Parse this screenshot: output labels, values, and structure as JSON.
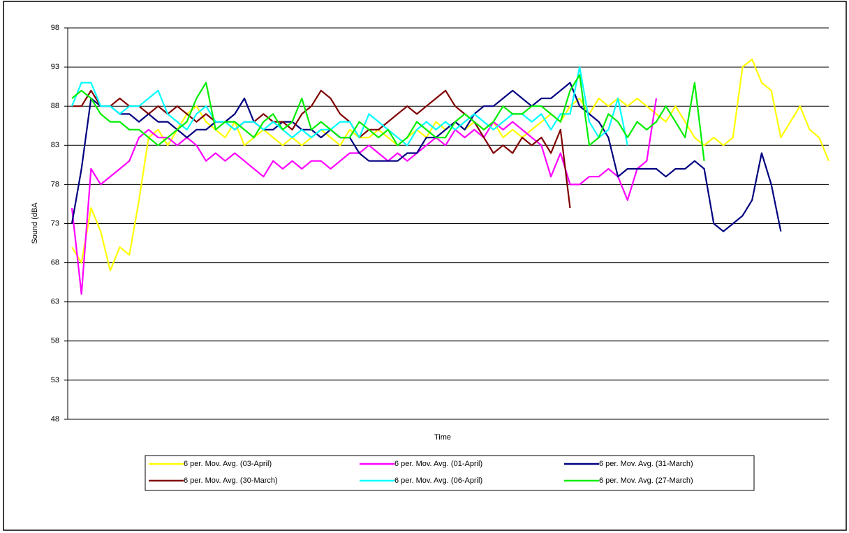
{
  "chart_data": {
    "type": "line",
    "y_label": "Sound (dBA",
    "x_label": "Time",
    "ylim": [
      48,
      98
    ],
    "yticks": [
      48,
      53,
      58,
      63,
      68,
      73,
      78,
      83,
      88,
      93,
      98
    ],
    "grid": true,
    "legend": "bottom",
    "categories": [
      null,
      null,
      null,
      null,
      null,
      null,
      null,
      null,
      null,
      null,
      null,
      null,
      null,
      null,
      null,
      null,
      null,
      null,
      null,
      null,
      null,
      null,
      null,
      null,
      null,
      null,
      null,
      null,
      null,
      null,
      null,
      null,
      null,
      null,
      null,
      null,
      null,
      null,
      null,
      null,
      null,
      null,
      null,
      null,
      null,
      null,
      null,
      null,
      null,
      null,
      null,
      null,
      null,
      null,
      null,
      null,
      null,
      null,
      null,
      null,
      null,
      null,
      null,
      null,
      null,
      null,
      null,
      null,
      null,
      null,
      null,
      null,
      null,
      null,
      null,
      null,
      null,
      null,
      null,
      null
    ],
    "series": [
      {
        "name": "6 per. Mov. Avg. (03-April)",
        "color": "#ffff00",
        "values": [
          70,
          68,
          75,
          72,
          67,
          70,
          69,
          76,
          84,
          85,
          83,
          85,
          87,
          88,
          86,
          85,
          84,
          86,
          83,
          84,
          85,
          84,
          83,
          84,
          83,
          84,
          85,
          84,
          83,
          85,
          84,
          84,
          85,
          84,
          83,
          84,
          85,
          84,
          86,
          85,
          86,
          85,
          86,
          85,
          86,
          84,
          85,
          84,
          85,
          86,
          87,
          86,
          88,
          89,
          87,
          89,
          88,
          89,
          88,
          89,
          88,
          87,
          86,
          88,
          86,
          84,
          83,
          84,
          83,
          84,
          93,
          94,
          91,
          90,
          84,
          86,
          88,
          85,
          84,
          81
        ]
      },
      {
        "name": "6 per. Mov. Avg. (01-April)",
        "color": "#ff00ff",
        "values": [
          75,
          64,
          80,
          78,
          79,
          80,
          81,
          84,
          85,
          84,
          84,
          83,
          84,
          83,
          81,
          82,
          81,
          82,
          81,
          80,
          79,
          81,
          80,
          81,
          80,
          81,
          81,
          80,
          81,
          82,
          82,
          83,
          82,
          81,
          82,
          81,
          82,
          83,
          84,
          83,
          85,
          84,
          85,
          84,
          86,
          85,
          86,
          85,
          84,
          83,
          79,
          82,
          78,
          78,
          79,
          79,
          80,
          79,
          76,
          80,
          81,
          89,
          null,
          null,
          null,
          null,
          null,
          null,
          null,
          null,
          null,
          null,
          null,
          null,
          null,
          null,
          null,
          null,
          null,
          null
        ]
      },
      {
        "name": "6 per. Mov. Avg. (31-March)",
        "color": "#000080",
        "values": [
          73,
          80,
          89,
          88,
          88,
          87,
          87,
          86,
          87,
          86,
          86,
          85,
          84,
          85,
          85,
          86,
          86,
          87,
          89,
          86,
          85,
          85,
          86,
          86,
          85,
          85,
          84,
          85,
          84,
          84,
          82,
          81,
          81,
          81,
          81,
          82,
          82,
          84,
          84,
          85,
          86,
          85,
          87,
          88,
          88,
          89,
          90,
          89,
          88,
          89,
          89,
          90,
          91,
          88,
          87,
          86,
          84,
          79,
          80,
          80,
          80,
          80,
          79,
          80,
          80,
          81,
          80,
          73,
          72,
          73,
          74,
          76,
          82,
          78,
          72,
          null,
          null,
          null,
          null,
          null
        ]
      },
      {
        "name": "6 per. Mov. Avg. (30-March)",
        "color": "#800000",
        "values": [
          88,
          88,
          90,
          88,
          88,
          89,
          88,
          88,
          87,
          88,
          87,
          88,
          87,
          86,
          87,
          86,
          86,
          85,
          86,
          86,
          87,
          86,
          86,
          85,
          87,
          88,
          90,
          89,
          87,
          86,
          84,
          85,
          85,
          86,
          87,
          88,
          87,
          88,
          89,
          90,
          88,
          87,
          86,
          84,
          82,
          83,
          82,
          84,
          83,
          84,
          82,
          85,
          75,
          null,
          null,
          null,
          null,
          null,
          null,
          null,
          null,
          null,
          null,
          null,
          null,
          null,
          null,
          null,
          null,
          null,
          null,
          null,
          null,
          null,
          null,
          null,
          null,
          null,
          null,
          null
        ]
      },
      {
        "name": "6 per. Mov. Avg. (06-April)",
        "color": "#00ffff",
        "values": [
          88,
          91,
          91,
          88,
          88,
          87,
          88,
          88,
          89,
          90,
          87,
          86,
          85,
          87,
          88,
          86,
          86,
          85,
          86,
          86,
          85,
          86,
          85,
          84,
          85,
          84,
          85,
          85,
          86,
          86,
          84,
          87,
          86,
          85,
          84,
          83,
          85,
          86,
          85,
          86,
          85,
          86,
          87,
          86,
          85,
          86,
          87,
          87,
          86,
          87,
          85,
          87,
          87,
          93,
          86,
          84,
          85,
          89,
          83,
          null,
          null,
          null,
          null,
          null,
          null,
          null,
          null,
          null,
          null,
          null,
          null,
          null,
          null,
          null,
          null,
          null,
          null,
          null,
          null,
          null
        ]
      },
      {
        "name": "6 per. Mov. Avg. (27-March)",
        "color": "#00ee00",
        "values": [
          89,
          90,
          89,
          87,
          86,
          86,
          85,
          85,
          84,
          83,
          84,
          85,
          86,
          89,
          91,
          85,
          86,
          86,
          85,
          84,
          86,
          87,
          85,
          86,
          89,
          85,
          86,
          85,
          84,
          84,
          86,
          85,
          84,
          85,
          83,
          84,
          86,
          85,
          84,
          84,
          86,
          87,
          86,
          85,
          86,
          88,
          87,
          87,
          88,
          88,
          87,
          86,
          90,
          92,
          83,
          84,
          87,
          86,
          84,
          86,
          85,
          86,
          88,
          86,
          84,
          91,
          81,
          null,
          null,
          null,
          null,
          null,
          null,
          null,
          null,
          null,
          null,
          null,
          null,
          null
        ]
      }
    ]
  }
}
